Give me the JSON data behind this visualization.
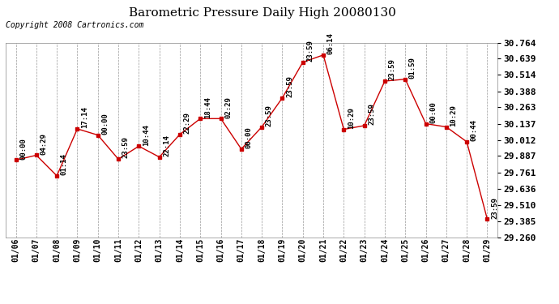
{
  "title": "Barometric Pressure Daily High 20080130",
  "copyright": "Copyright 2008 Cartronics.com",
  "dates": [
    "01/06",
    "01/07",
    "01/08",
    "01/09",
    "01/10",
    "01/11",
    "01/12",
    "01/13",
    "01/14",
    "01/15",
    "01/16",
    "01/17",
    "01/18",
    "01/19",
    "01/20",
    "01/21",
    "01/22",
    "01/23",
    "01/24",
    "01/25",
    "01/26",
    "01/27",
    "01/28",
    "01/29"
  ],
  "values": [
    29.856,
    29.893,
    29.734,
    30.097,
    30.049,
    29.863,
    29.963,
    29.879,
    30.054,
    30.176,
    30.176,
    29.941,
    30.112,
    30.336,
    30.612,
    30.668,
    30.093,
    30.122,
    30.466,
    30.481,
    30.137,
    30.112,
    29.997,
    29.399
  ],
  "annotations": [
    "00:00",
    "04:29",
    "01:14",
    "17:14",
    "00:00",
    "23:59",
    "10:44",
    "22:14",
    "22:29",
    "18:44",
    "02:29",
    "00:00",
    "23:59",
    "23:59",
    "23:59",
    "06:14",
    "10:29",
    "23:59",
    "23:59",
    "01:59",
    "00:00",
    "10:29",
    "00:44",
    "23:59"
  ],
  "line_color": "#cc0000",
  "marker_color": "#cc0000",
  "bg_color": "#ffffff",
  "plot_bg_color": "#ffffff",
  "grid_color": "#999999",
  "ylim_min": 29.26,
  "ylim_max": 30.764,
  "yticks": [
    29.26,
    29.385,
    29.51,
    29.636,
    29.761,
    29.887,
    30.012,
    30.137,
    30.263,
    30.388,
    30.514,
    30.639,
    30.764
  ],
  "annotation_fontsize": 6.5,
  "title_fontsize": 11,
  "copyright_fontsize": 7,
  "xlabel_fontsize": 7,
  "ylabel_fontsize": 8
}
